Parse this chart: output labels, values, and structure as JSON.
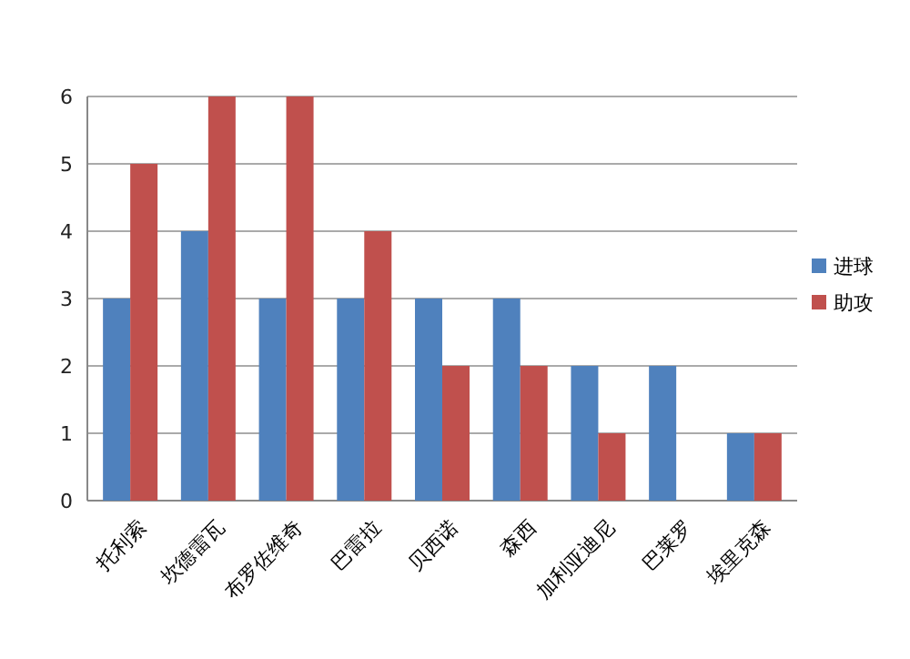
{
  "chart_data": {
    "type": "bar",
    "categories": [
      "托利索",
      "坎德雷瓦",
      "布罗佐维奇",
      "巴雷拉",
      "贝西诺",
      "森西",
      "加利亚迪尼",
      "巴莱罗",
      "埃里克森"
    ],
    "series": [
      {
        "name": "进球",
        "color": "#4f81bd",
        "values": [
          3,
          4,
          3,
          3,
          3,
          3,
          2,
          2,
          1
        ]
      },
      {
        "name": "助攻",
        "color": "#c0504d",
        "values": [
          5,
          6,
          6,
          4,
          2,
          2,
          1,
          0,
          1
        ]
      }
    ],
    "ylim": [
      0,
      6
    ],
    "yticks": [
      0,
      1,
      2,
      3,
      4,
      5,
      6
    ],
    "grid": "y",
    "legend": "right"
  }
}
